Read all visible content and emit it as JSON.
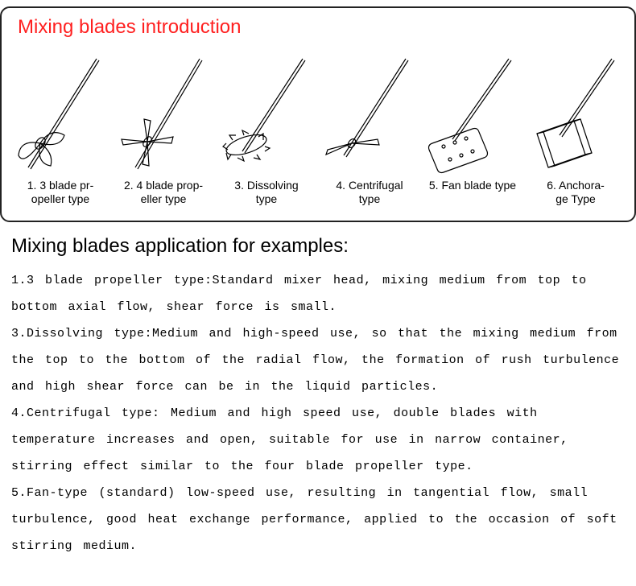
{
  "intro_title": "Mixing blades introduction",
  "intro_title_color": "#ff2020",
  "app_title": "Mixing blades application for examples:",
  "border_color": "#222222",
  "border_radius": 12,
  "text_color": "#000000",
  "background_color": "#ffffff",
  "blades": [
    {
      "num": "1.",
      "label": "3 blade pr-\nopeller type"
    },
    {
      "num": "2.",
      "label": "4 blade prop-\neller type"
    },
    {
      "num": "3.",
      "label": "Dissolving\ntype"
    },
    {
      "num": "4.",
      "label": "Centrifugal\ntype"
    },
    {
      "num": "5.",
      "label": "Fan blade type"
    },
    {
      "num": "6.",
      "label": "Anchora-\nge Type"
    }
  ],
  "blade_label_fontsize": 14,
  "title_fontsize": 24,
  "svg_stroke": "#000000",
  "svg_stroke_width": 1.2,
  "descriptions": [
    "1.3 blade propeller type:Standard mixer head, mixing medium from top to bottom axial flow, shear force is small.",
    "3.Dissolving type:Medium and high-speed use, so that the mixing medium from the top to the bottom of the radial flow, the formation of rush turbulence and high shear force can be in the liquid particles.",
    "4.Centrifugal type: Medium and high speed use, double blades with temperature increases and open, suitable for use in narrow container, stirring effect similar to the four blade propeller type.",
    "5.Fan-type (standard) low-speed use, resulting in tangential flow, small turbulence, good heat exchange performance, applied to the occasion of soft stirring medium."
  ],
  "desc_fontsize": 15,
  "desc_line_height": 2.2,
  "desc_letter_spacing": 0.5
}
